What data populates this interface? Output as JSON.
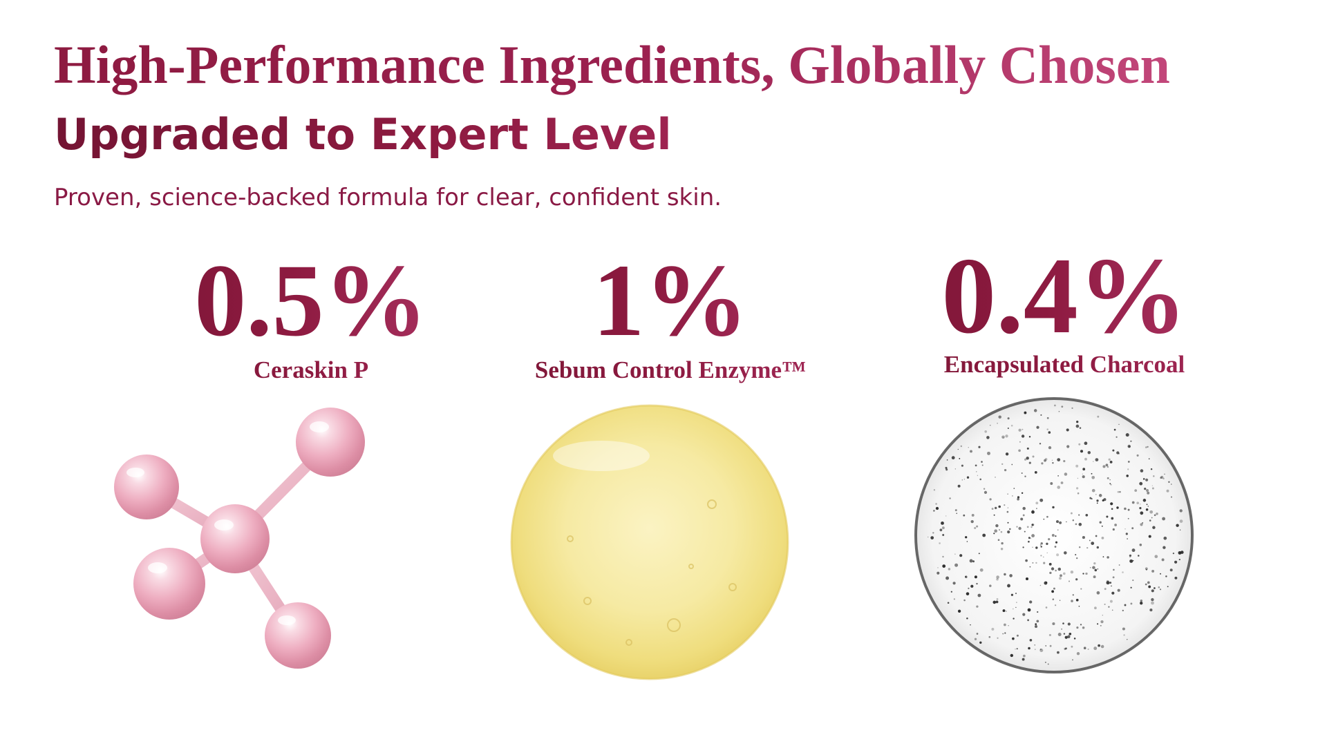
{
  "header": {
    "title": "High-Performance Ingredients, Globally Chosen",
    "subtitle": "Upgraded to Expert Level",
    "tagline": "Proven, science-backed formula for clear, confident skin."
  },
  "ingredients": [
    {
      "percent": "0.5%",
      "name": "Ceraskin P",
      "visual": "pink-molecule-icon"
    },
    {
      "percent": "1%",
      "name": "Sebum Control Enzyme™",
      "visual": "yellow-gel-drop"
    },
    {
      "percent": "0.4%",
      "name": "Encapsulated Charcoal",
      "visual": "charcoal-gel-drop"
    }
  ],
  "colors": {
    "brand": "#8d1a40",
    "accent": "#c2477a",
    "molecule": "#f0b6c6",
    "gel": "#f5e9a6"
  }
}
